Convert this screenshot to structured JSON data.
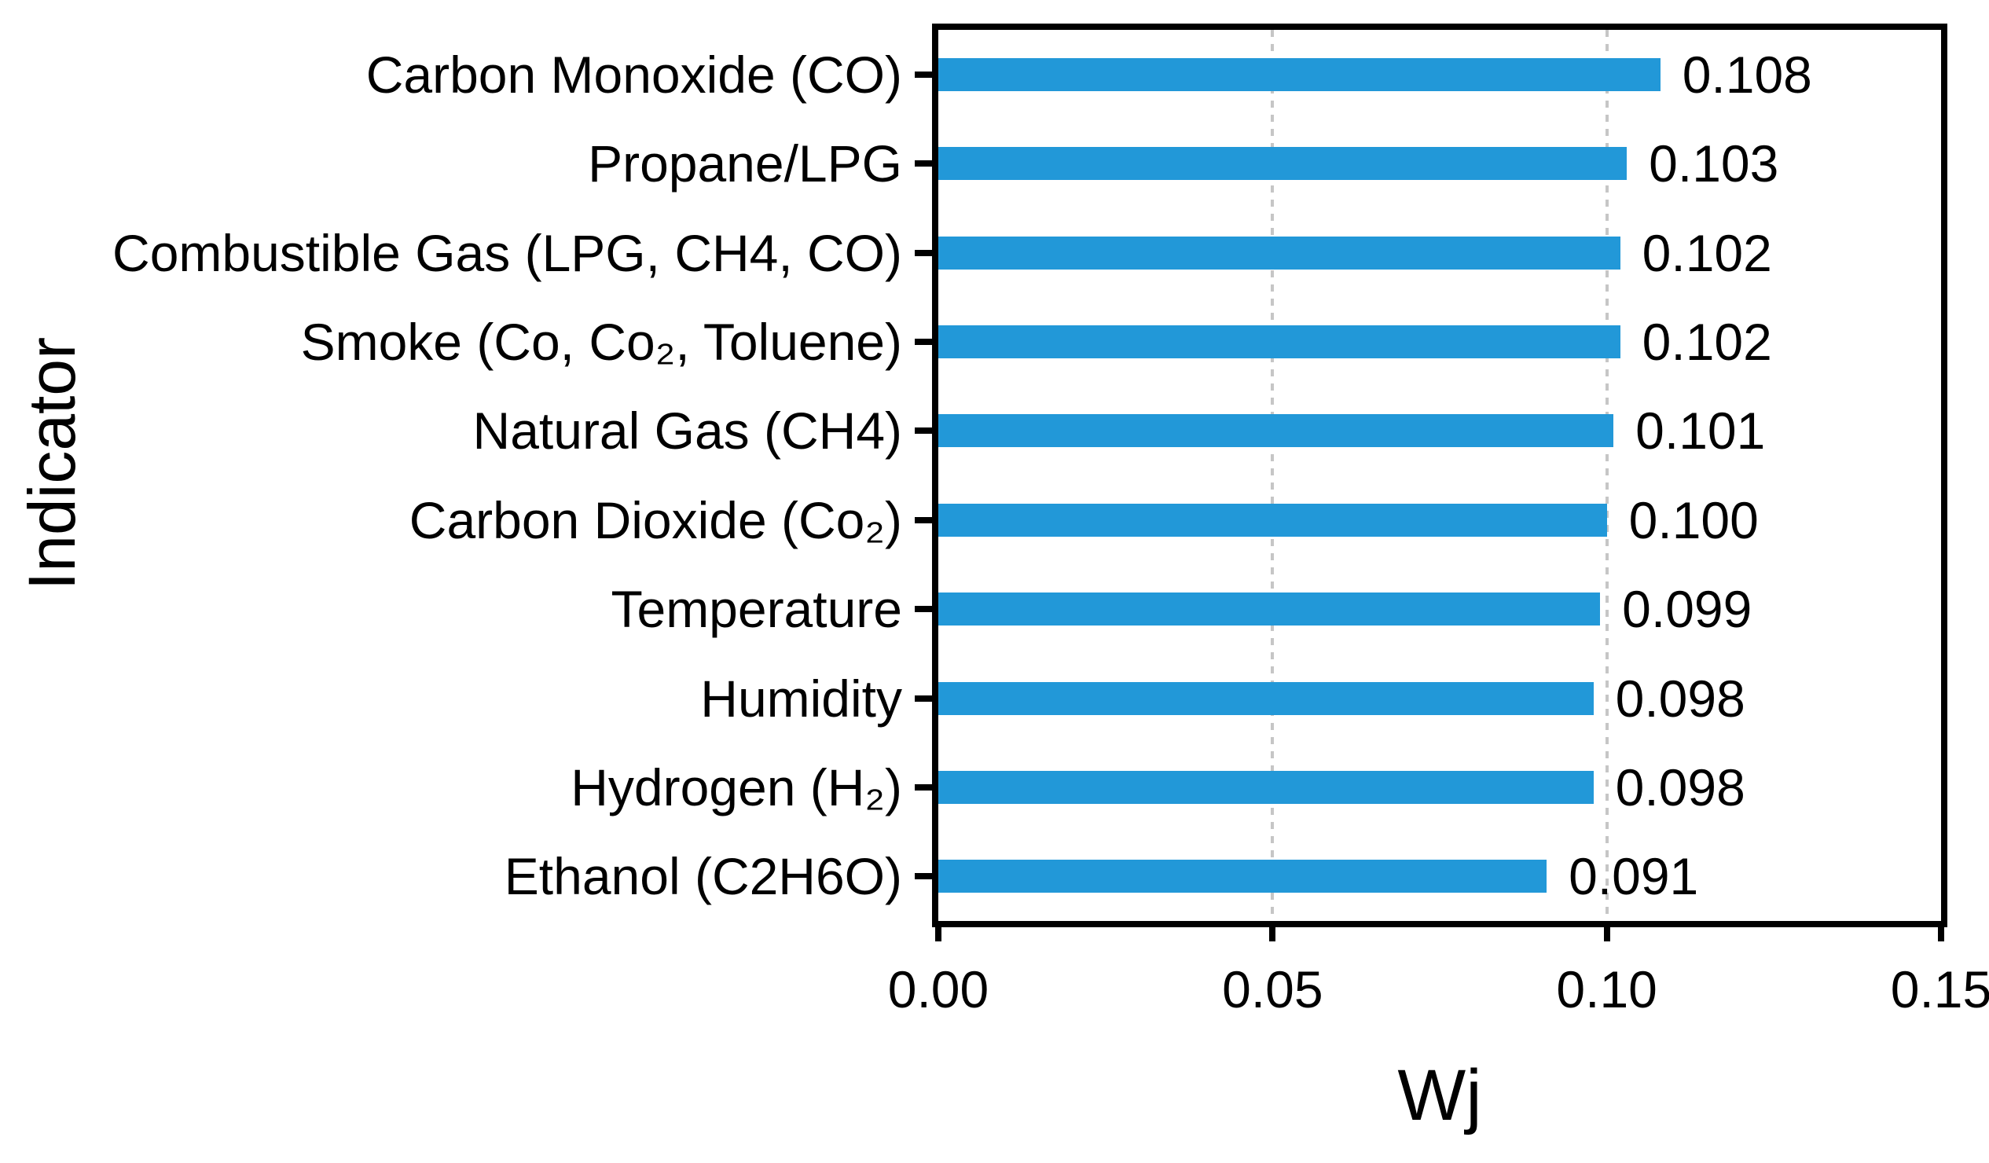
{
  "chart_data": {
    "type": "bar",
    "orientation": "horizontal",
    "xlabel": "Wj",
    "ylabel": "Indicator",
    "categories": [
      "Carbon Monoxide (CO)",
      "Propane/LPG",
      "Combustible Gas (LPG, CH4, CO)",
      "Smoke (Co, Co₂, Toluene)",
      "Natural Gas (CH4)",
      "Carbon Dioxide (Co₂)",
      "Temperature",
      "Humidity",
      "Hydrogen (H₂)",
      "Ethanol (C2H6O)"
    ],
    "values": [
      0.108,
      0.103,
      0.102,
      0.102,
      0.101,
      0.1,
      0.099,
      0.098,
      0.098,
      0.091
    ],
    "value_labels": [
      "0.108",
      "0.103",
      "0.102",
      "0.102",
      "0.101",
      "0.100",
      "0.099",
      "0.098",
      "0.098",
      "0.091"
    ],
    "xlim": [
      0,
      0.15
    ],
    "xticks": [
      "0.00",
      "0.05",
      "0.10",
      "0.15"
    ],
    "xtick_values": [
      0,
      0.05,
      0.1,
      0.15
    ],
    "grid": "vertical dashed gridlines at 0.05 and 0.10",
    "legend_position": "none",
    "bar_color": "#2298d8",
    "gridline_color": "#c6c6c6",
    "axis_color": "#000000"
  }
}
